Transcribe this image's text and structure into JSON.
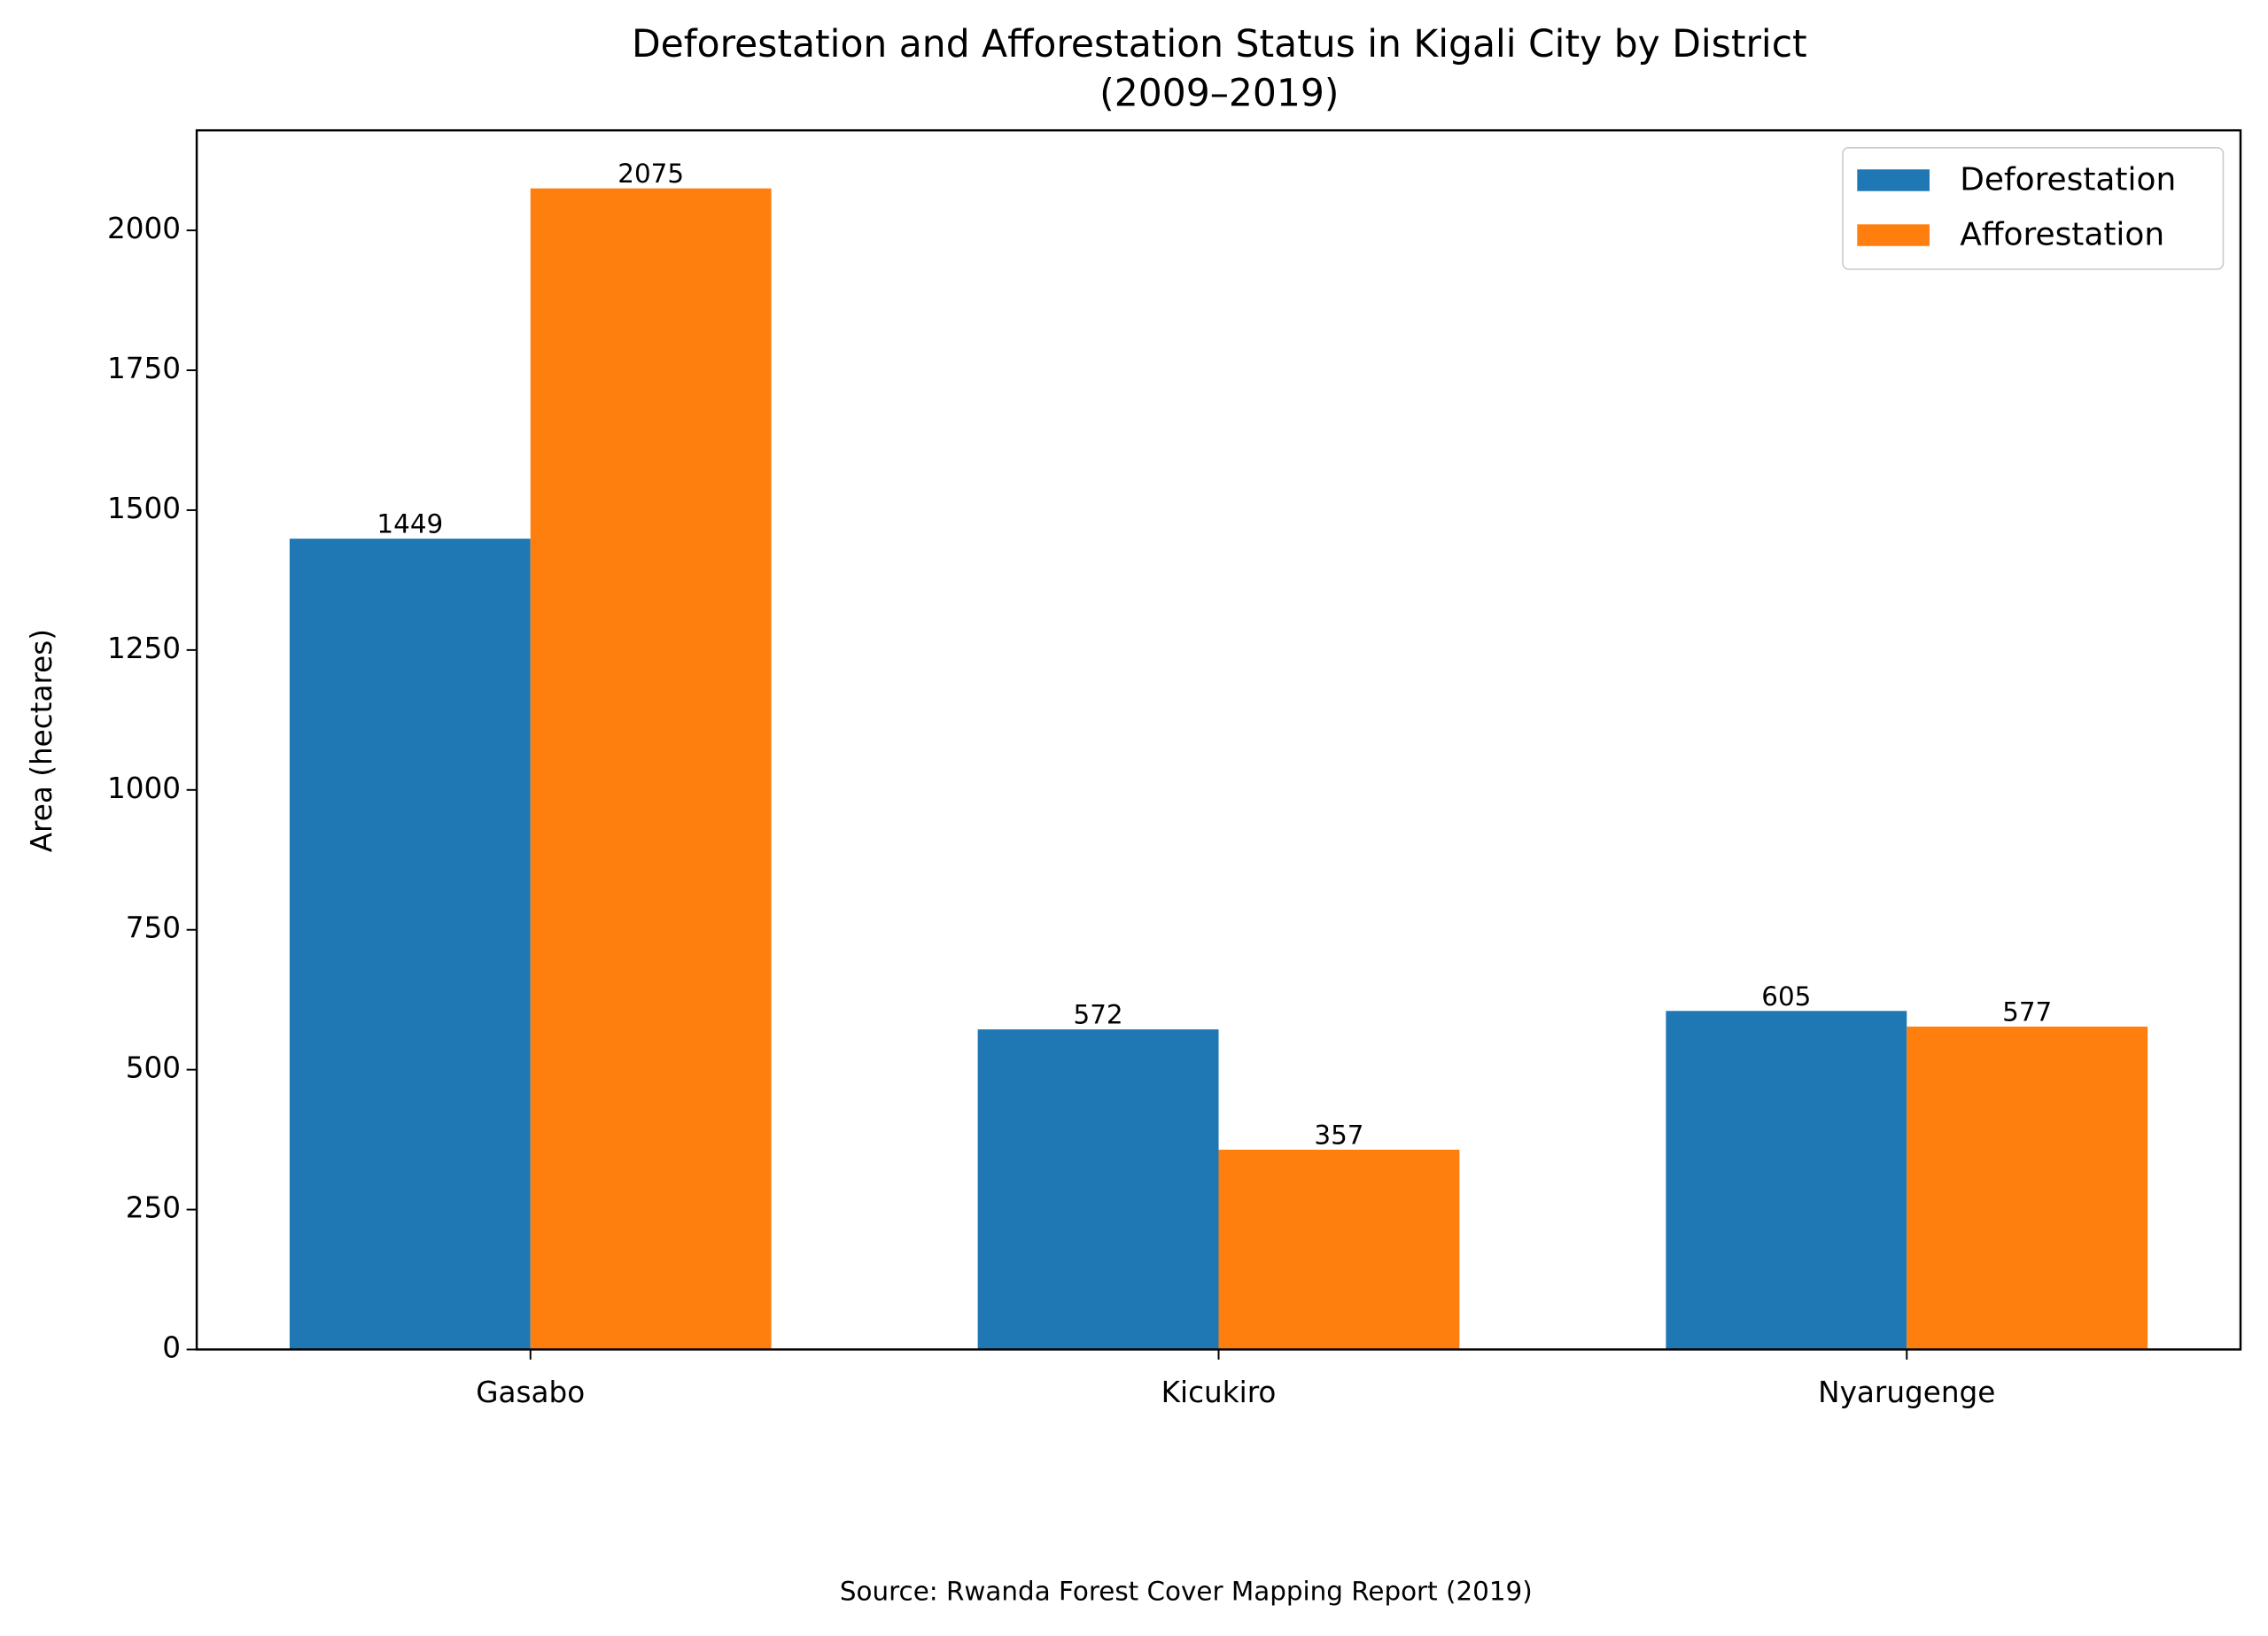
{
  "chart_data": {
    "type": "bar",
    "title": [
      "Deforestation and Afforestation Status in Kigali City by District",
      "(2009–2019)"
    ],
    "ylabel": "Area (hectares)",
    "source": "Source: Rwanda Forest Cover Mapping Report (2019)",
    "categories": [
      "Gasabo",
      "Kicukiro",
      "Nyarugenge"
    ],
    "series": [
      {
        "name": "Deforestation",
        "color": "#1f77b4",
        "values": [
          1449,
          572,
          605
        ]
      },
      {
        "name": "Afforestation",
        "color": "#ff7f0e",
        "values": [
          2075,
          357,
          577
        ]
      }
    ],
    "ylim": [
      0,
      2178.75
    ],
    "yticks": [
      0,
      250,
      500,
      750,
      1000,
      1250,
      1500,
      1750,
      2000
    ],
    "legend": "upper right",
    "grid": false
  }
}
